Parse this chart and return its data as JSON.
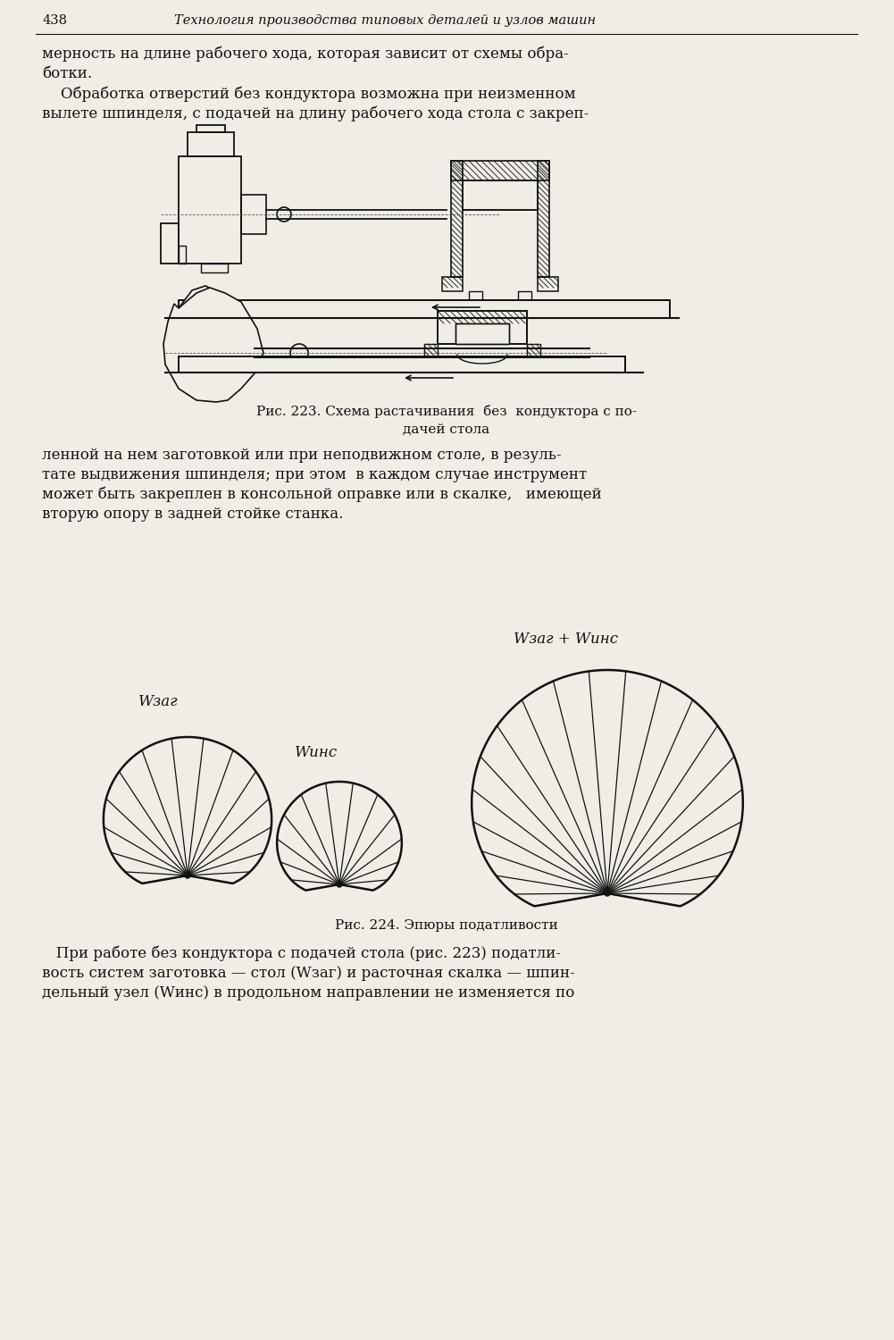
{
  "page_number": "438",
  "header_title": "Технология производства типовых деталей и узлов машин",
  "bg_color": "#f0ede6",
  "text_color": "#111111",
  "para1_line1": "мерность на длине рабочего хода, которая зависит от схемы обра-",
  "para1_line2": "ботки.",
  "para2_line1": "    Обработка отверстий без кондуктора возможна при неизменном",
  "para2_line2": "вылете шпинделя, с подачей на длину рабочего хода стола с закреп-",
  "fig223_caption_line1": "Рис. 223. Схема растачивания  без  кондуктора с по-",
  "fig223_caption_line2": "дачей стола",
  "para3_line1": "ленной на нем заготовкой или при неподвижном столе, в резуль-",
  "para3_line2": "тате выдвижения шпинделя; при этом  в каждом случае инструмент",
  "para3_line3": "может быть закреплен в консольной оправке или в скалке,   имеющей",
  "para3_line4": "вторую опору в задней стойке станка.",
  "label_wzag": "Wзаг",
  "label_wins": "Wинс",
  "label_wzag_wins": "Wзаг + Wинс",
  "fig224_caption": "Рис. 224. Эпюры податливости",
  "para4_line1": "   При работе без кондуктора с подачей стола (рис. 223) податли-",
  "para4_line2": "вость систем заготовка — стол (Wзаг) и расточная скалка — шпин-",
  "para4_line3": "дельный узел (Wинс) в продольном направлении не изменяется по"
}
